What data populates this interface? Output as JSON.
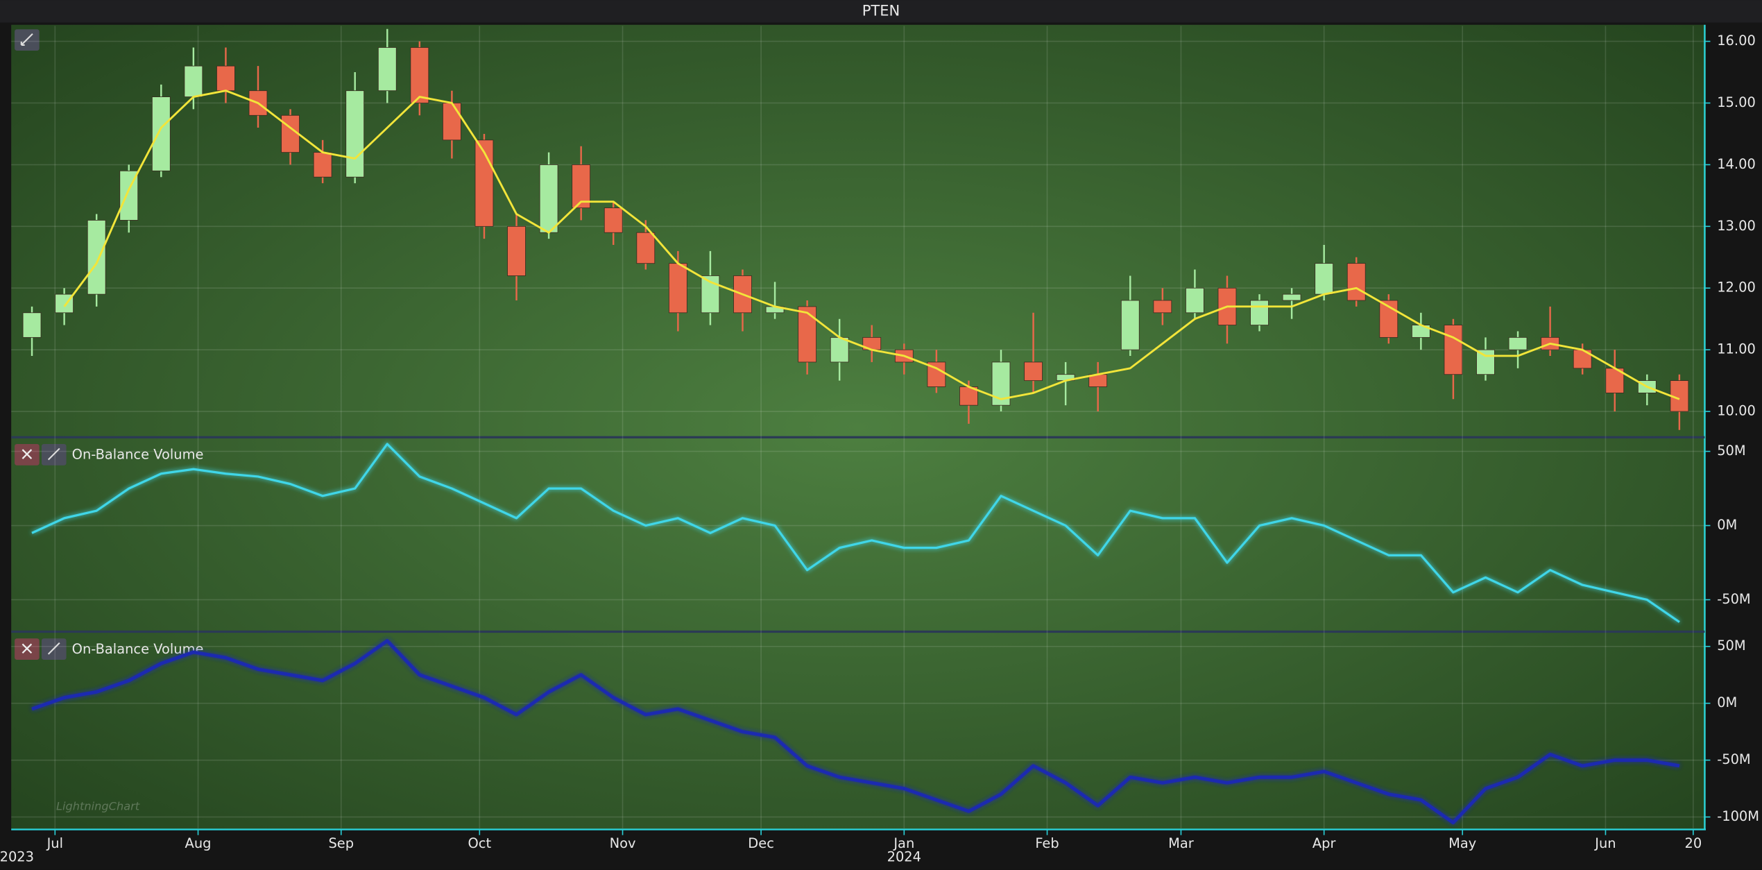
{
  "watermark": "LightningChart",
  "chart_data": [
    {
      "type": "candlestick",
      "title": "PTEN",
      "x": [
        "2023-06-26",
        "2023-07-03",
        "2023-07-10",
        "2023-07-17",
        "2023-07-24",
        "2023-07-31",
        "2023-08-07",
        "2023-08-14",
        "2023-08-21",
        "2023-08-28",
        "2023-09-04",
        "2023-09-11",
        "2023-09-18",
        "2023-09-25",
        "2023-10-02",
        "2023-10-09",
        "2023-10-16",
        "2023-10-23",
        "2023-10-30",
        "2023-11-06",
        "2023-11-13",
        "2023-11-20",
        "2023-11-27",
        "2023-12-04",
        "2023-12-11",
        "2023-12-18",
        "2023-12-25",
        "2024-01-01",
        "2024-01-08",
        "2024-01-15",
        "2024-01-22",
        "2024-01-29",
        "2024-02-05",
        "2024-02-12",
        "2024-02-19",
        "2024-02-26",
        "2024-03-04",
        "2024-03-11",
        "2024-03-18",
        "2024-03-25",
        "2024-04-01",
        "2024-04-08",
        "2024-04-15",
        "2024-04-22",
        "2024-04-29",
        "2024-05-06",
        "2024-05-13",
        "2024-05-20",
        "2024-05-27",
        "2024-06-03",
        "2024-06-10",
        "2024-06-17"
      ],
      "open": [
        11.2,
        11.6,
        11.9,
        13.1,
        13.9,
        15.1,
        15.6,
        15.2,
        14.8,
        14.2,
        13.8,
        15.2,
        15.9,
        15.0,
        14.4,
        13.0,
        12.9,
        14.0,
        13.3,
        12.9,
        12.4,
        11.6,
        12.2,
        11.6,
        11.7,
        10.8,
        11.2,
        11.0,
        10.8,
        10.4,
        10.1,
        10.8,
        10.5,
        10.6,
        11.0,
        11.8,
        11.6,
        12.0,
        11.4,
        11.8,
        11.9,
        12.4,
        11.8,
        11.2,
        11.4,
        10.6,
        11.0,
        11.2,
        11.0,
        10.7,
        10.3,
        10.5
      ],
      "high": [
        11.7,
        12.0,
        13.2,
        14.0,
        15.3,
        15.9,
        15.9,
        15.6,
        14.9,
        14.4,
        15.5,
        16.2,
        16.0,
        15.2,
        14.5,
        13.2,
        14.2,
        14.3,
        13.4,
        13.1,
        12.6,
        12.6,
        12.3,
        12.1,
        11.8,
        11.5,
        11.4,
        11.1,
        11.0,
        10.5,
        11.0,
        11.6,
        10.8,
        10.8,
        12.2,
        12.0,
        12.3,
        12.2,
        11.9,
        12.0,
        12.7,
        12.5,
        11.9,
        11.6,
        11.5,
        11.2,
        11.3,
        11.7,
        11.1,
        11.0,
        10.6,
        10.6
      ],
      "low": [
        10.9,
        11.4,
        11.7,
        12.9,
        13.8,
        14.9,
        15.0,
        14.6,
        14.0,
        13.7,
        13.7,
        15.0,
        14.8,
        14.1,
        12.8,
        11.8,
        12.8,
        13.1,
        12.7,
        12.3,
        11.3,
        11.4,
        11.3,
        11.5,
        10.6,
        10.5,
        10.8,
        10.6,
        10.3,
        9.8,
        10.0,
        10.3,
        10.1,
        10.0,
        10.9,
        11.4,
        11.5,
        11.1,
        11.3,
        11.5,
        11.8,
        11.7,
        11.1,
        11.0,
        10.2,
        10.5,
        10.7,
        10.9,
        10.6,
        10.0,
        10.1,
        9.7
      ],
      "close": [
        11.6,
        11.9,
        13.1,
        13.9,
        15.1,
        15.6,
        15.2,
        14.8,
        14.2,
        13.8,
        15.2,
        15.9,
        15.0,
        14.4,
        13.0,
        12.2,
        14.0,
        13.3,
        12.9,
        12.4,
        11.6,
        12.2,
        11.6,
        11.7,
        10.8,
        11.2,
        11.0,
        10.8,
        10.4,
        10.1,
        10.8,
        10.5,
        10.6,
        10.4,
        11.8,
        11.6,
        12.0,
        11.4,
        11.8,
        11.9,
        12.4,
        11.8,
        11.2,
        11.4,
        10.6,
        11.0,
        11.2,
        11.0,
        10.7,
        10.3,
        10.5,
        10.0
      ],
      "up_color": "#a6eaa0",
      "down_color": "#e8684a",
      "lines": [
        {
          "color": "#f2e53a",
          "values": [
            null,
            11.7,
            12.4,
            13.6,
            14.6,
            15.1,
            15.2,
            15.0,
            14.6,
            14.2,
            14.1,
            14.6,
            15.1,
            15.0,
            14.2,
            13.2,
            12.9,
            13.4,
            13.4,
            13.0,
            12.4,
            12.1,
            11.9,
            11.7,
            11.6,
            11.2,
            11.0,
            10.9,
            10.7,
            10.4,
            10.2,
            10.3,
            10.5,
            10.6,
            10.7,
            11.1,
            11.5,
            11.7,
            11.7,
            11.7,
            11.9,
            12.0,
            11.7,
            11.4,
            11.2,
            10.9,
            10.9,
            11.1,
            11.0,
            10.7,
            10.4,
            10.2
          ]
        }
      ],
      "xlim": [
        "2023-06-22",
        "2024-06-22"
      ],
      "ylim": [
        9.6,
        16.25
      ],
      "yticks": [
        {
          "value": 10,
          "label": "10.00"
        },
        {
          "value": 11,
          "label": "11.00"
        },
        {
          "value": 12,
          "label": "12.00"
        },
        {
          "value": 13,
          "label": "13.00"
        },
        {
          "value": 14,
          "label": "14.00"
        },
        {
          "value": 15,
          "label": "15.00"
        },
        {
          "value": 16,
          "label": "16.00"
        }
      ],
      "grid": true
    },
    {
      "type": "line",
      "title": "On-Balance Volume",
      "x": [
        "2023-06-26",
        "2023-07-03",
        "2023-07-10",
        "2023-07-17",
        "2023-07-24",
        "2023-07-31",
        "2023-08-07",
        "2023-08-14",
        "2023-08-21",
        "2023-08-28",
        "2023-09-04",
        "2023-09-11",
        "2023-09-18",
        "2023-09-25",
        "2023-10-02",
        "2023-10-09",
        "2023-10-16",
        "2023-10-23",
        "2023-10-30",
        "2023-11-06",
        "2023-11-13",
        "2023-11-20",
        "2023-11-27",
        "2023-12-04",
        "2023-12-11",
        "2023-12-18",
        "2023-12-25",
        "2024-01-01",
        "2024-01-08",
        "2024-01-15",
        "2024-01-22",
        "2024-01-29",
        "2024-02-05",
        "2024-02-12",
        "2024-02-19",
        "2024-02-26",
        "2024-03-04",
        "2024-03-11",
        "2024-03-18",
        "2024-03-25",
        "2024-04-01",
        "2024-04-08",
        "2024-04-15",
        "2024-04-22",
        "2024-04-29",
        "2024-05-06",
        "2024-05-13",
        "2024-05-20",
        "2024-05-27",
        "2024-06-03",
        "2024-06-10",
        "2024-06-17"
      ],
      "color": "#3fd6e8",
      "values": [
        -5000000,
        5000000,
        10000000,
        25000000,
        35000000,
        38000000,
        35000000,
        33000000,
        28000000,
        20000000,
        25000000,
        55000000,
        33000000,
        25000000,
        15000000,
        5000000,
        25000000,
        25000000,
        10000000,
        0,
        5000000,
        -5000000,
        5000000,
        0,
        -30000000,
        -15000000,
        -10000000,
        -15000000,
        -15000000,
        -10000000,
        20000000,
        10000000,
        0,
        -20000000,
        10000000,
        5000000,
        5000000,
        -25000000,
        0,
        5000000,
        0,
        -10000000,
        -20000000,
        -20000000,
        -45000000,
        -35000000,
        -45000000,
        -30000000,
        -40000000,
        -45000000,
        -50000000,
        -65000000
      ],
      "xlim": [
        "2023-06-22",
        "2024-06-22"
      ],
      "ylim": [
        -70000000,
        58000000
      ],
      "yticks": [
        {
          "value": 50000000,
          "label": "50M"
        },
        {
          "value": 0,
          "label": "0M"
        },
        {
          "value": -50000000,
          "label": "-50M"
        }
      ],
      "grid": true
    },
    {
      "type": "line",
      "title": "On-Balance Volume",
      "x": [
        "2023-06-26",
        "2023-07-03",
        "2023-07-10",
        "2023-07-17",
        "2023-07-24",
        "2023-07-31",
        "2023-08-07",
        "2023-08-14",
        "2023-08-21",
        "2023-08-28",
        "2023-09-04",
        "2023-09-11",
        "2023-09-18",
        "2023-09-25",
        "2023-10-02",
        "2023-10-09",
        "2023-10-16",
        "2023-10-23",
        "2023-10-30",
        "2023-11-06",
        "2023-11-13",
        "2023-11-20",
        "2023-11-27",
        "2023-12-04",
        "2023-12-11",
        "2023-12-18",
        "2023-12-25",
        "2024-01-01",
        "2024-01-08",
        "2024-01-15",
        "2024-01-22",
        "2024-01-29",
        "2024-02-05",
        "2024-02-12",
        "2024-02-19",
        "2024-02-26",
        "2024-03-04",
        "2024-03-11",
        "2024-03-18",
        "2024-03-25",
        "2024-04-01",
        "2024-04-08",
        "2024-04-15",
        "2024-04-22",
        "2024-04-29",
        "2024-05-06",
        "2024-05-13",
        "2024-05-20",
        "2024-05-27",
        "2024-06-03",
        "2024-06-10",
        "2024-06-17"
      ],
      "color": "#1a2bb0",
      "values": [
        -5000000,
        5000000,
        10000000,
        20000000,
        35000000,
        45000000,
        40000000,
        30000000,
        25000000,
        20000000,
        35000000,
        55000000,
        25000000,
        15000000,
        5000000,
        -10000000,
        10000000,
        25000000,
        5000000,
        -10000000,
        -5000000,
        -15000000,
        -25000000,
        -30000000,
        -55000000,
        -65000000,
        -70000000,
        -75000000,
        -85000000,
        -95000000,
        -80000000,
        -55000000,
        -70000000,
        -90000000,
        -65000000,
        -70000000,
        -65000000,
        -70000000,
        -65000000,
        -65000000,
        -60000000,
        -70000000,
        -80000000,
        -85000000,
        -105000000,
        -75000000,
        -65000000,
        -45000000,
        -55000000,
        -50000000,
        -50000000,
        -55000000
      ],
      "xlim": [
        "2023-06-22",
        "2024-06-22"
      ],
      "ylim": [
        -110000000,
        61000000
      ],
      "yticks": [
        {
          "value": 50000000,
          "label": "50M"
        },
        {
          "value": 0,
          "label": "0M"
        },
        {
          "value": -50000000,
          "label": "-50M"
        },
        {
          "value": -100000000,
          "label": "-100M"
        }
      ],
      "xticks": [
        {
          "value": "2023-07-01",
          "label": "Jul"
        },
        {
          "value": "2023-08-01",
          "label": "Aug"
        },
        {
          "value": "2023-09-01",
          "label": "Sep"
        },
        {
          "value": "2023-10-01",
          "label": "Oct"
        },
        {
          "value": "2023-11-01",
          "label": "Nov"
        },
        {
          "value": "2023-12-01",
          "label": "Dec"
        },
        {
          "value": "2024-01-01",
          "label": "Jan"
        },
        {
          "value": "2024-02-01",
          "label": "Feb"
        },
        {
          "value": "2024-03-01",
          "label": "Mar"
        },
        {
          "value": "2024-04-01",
          "label": "Apr"
        },
        {
          "value": "2024-05-01",
          "label": "May"
        },
        {
          "value": "2024-06-01",
          "label": "Jun"
        },
        {
          "value": "2024-06-20",
          "label": "20"
        }
      ],
      "x_year_labels": [
        {
          "value": "2023-06-22",
          "label": "2023"
        },
        {
          "value": "2024-01-01",
          "label": "2024"
        }
      ],
      "grid": true
    }
  ]
}
